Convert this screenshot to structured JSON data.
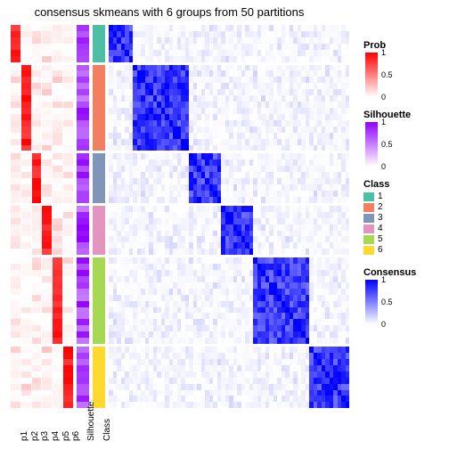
{
  "title": "consensus skmeans with 6 groups from 50 partitions",
  "prob_columns": [
    "p1",
    "p2",
    "p3",
    "p4",
    "p5",
    "p6"
  ],
  "annotation_labels": {
    "sil": "Silhouette",
    "class": "Class"
  },
  "row_count": 60,
  "groups": [
    {
      "class": 1,
      "start": 0,
      "end": 6
    },
    {
      "class": 2,
      "start": 6,
      "end": 20
    },
    {
      "class": 3,
      "start": 20,
      "end": 28
    },
    {
      "class": 4,
      "start": 28,
      "end": 36
    },
    {
      "class": 5,
      "start": 36,
      "end": 50
    },
    {
      "class": 6,
      "start": 50,
      "end": 60
    }
  ],
  "class_colors": {
    "1": "#4dbfa6",
    "2": "#f28060",
    "3": "#8095b8",
    "4": "#e395c0",
    "5": "#a6d854",
    "6": "#ffd92f"
  },
  "prob_palette": {
    "min": "#ffffff",
    "max": "#ff0000"
  },
  "sil_palette": {
    "min": "#ffffff",
    "max": "#9000ff"
  },
  "cons_palette": {
    "min": "#ffffff",
    "max": "#0000ff"
  },
  "legends": {
    "prob": {
      "title": "Prob",
      "ticks": [
        0,
        0.5,
        1
      ]
    },
    "sil": {
      "title": "Silhouette",
      "ticks": [
        0,
        0.5,
        1
      ]
    },
    "class": {
      "title": "Class",
      "items": [
        "1",
        "2",
        "3",
        "4",
        "5",
        "6"
      ]
    },
    "cons": {
      "title": "Consensus",
      "ticks": [
        0,
        0.5,
        1
      ]
    }
  }
}
